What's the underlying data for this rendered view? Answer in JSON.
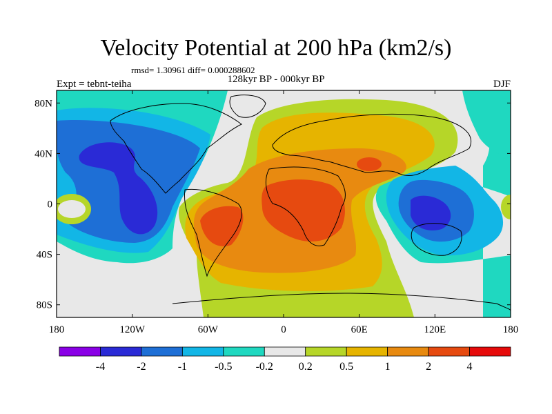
{
  "title": "Velocity Potential at 200 hPa (km2/s)",
  "stats": "rmsd= 1.30961 diff= 0.000288602",
  "experiment": "Expt = tebnt-teiha",
  "period": "128kyr BP - 000kyr BP",
  "season": "DJF",
  "map": {
    "lon_range": [
      -180,
      180
    ],
    "lat_range": [
      -90,
      90
    ],
    "x_ticks": [
      {
        "value": -180,
        "label": "180"
      },
      {
        "value": -120,
        "label": "120W"
      },
      {
        "value": -60,
        "label": "60W"
      },
      {
        "value": 0,
        "label": "0"
      },
      {
        "value": 60,
        "label": "60E"
      },
      {
        "value": 120,
        "label": "120E"
      },
      {
        "value": 180,
        "label": "180"
      }
    ],
    "y_ticks": [
      {
        "value": 80,
        "label": "80N"
      },
      {
        "value": 40,
        "label": "40N"
      },
      {
        "value": 0,
        "label": "0"
      },
      {
        "value": -40,
        "label": "40S"
      },
      {
        "value": -80,
        "label": "80S"
      }
    ]
  },
  "colorbar": {
    "colors": [
      "#8a00e6",
      "#2a2ad6",
      "#1e6fd6",
      "#12b6e6",
      "#1fd8c0",
      "#e8e8e8",
      "#b6d628",
      "#e6b400",
      "#e88a10",
      "#e64a10",
      "#e60a0a"
    ],
    "labels": [
      "-4",
      "-2",
      "-1",
      "-0.5",
      "-0.2",
      "0.2",
      "0.5",
      "1",
      "2",
      "4"
    ]
  }
}
